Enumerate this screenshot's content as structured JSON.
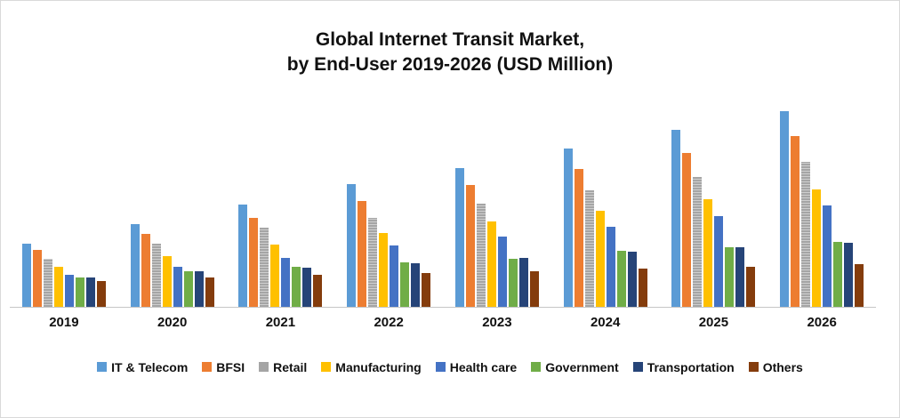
{
  "title": {
    "line1": "Global Internet Transit Market,",
    "line2": "by End-User 2019-2026 (USD Million)"
  },
  "chart_data": {
    "type": "bar",
    "title": "Global Internet Transit Market, by End-User 2019-2026 (USD Million)",
    "xlabel": "",
    "ylabel": "",
    "ylim": [
      0,
      250
    ],
    "grid": false,
    "legend_position": "bottom",
    "categories": [
      "2019",
      "2020",
      "2021",
      "2022",
      "2023",
      "2024",
      "2025",
      "2026"
    ],
    "series": [
      {
        "name": "IT & Telecom",
        "color": "#5B9BD5",
        "pattern": "solid",
        "values": [
          75,
          98,
          121,
          145,
          164,
          187,
          210,
          232
        ]
      },
      {
        "name": "BFSI",
        "color": "#ED7D31",
        "pattern": "solid",
        "values": [
          67,
          86,
          105,
          125,
          144,
          163,
          182,
          202
        ]
      },
      {
        "name": "Retail",
        "color": "#A5A5A5",
        "pattern": "stripes",
        "values": [
          57,
          75,
          94,
          105,
          122,
          138,
          154,
          172
        ]
      },
      {
        "name": "Manufacturing",
        "color": "#FFC000",
        "pattern": "solid",
        "values": [
          47,
          60,
          73,
          87,
          101,
          114,
          127,
          139
        ]
      },
      {
        "name": "Health care",
        "color": "#4472C4",
        "pattern": "solid",
        "values": [
          38,
          47,
          58,
          72,
          83,
          95,
          107,
          120
        ]
      },
      {
        "name": "Government",
        "color": "#70AD47",
        "pattern": "solid",
        "values": [
          35,
          42,
          47,
          52,
          57,
          66,
          70,
          77
        ]
      },
      {
        "name": "Transportation",
        "color": "#264478",
        "pattern": "solid",
        "values": [
          35,
          42,
          46,
          51,
          58,
          65,
          70,
          76
        ]
      },
      {
        "name": "Others",
        "color": "#843C0C",
        "pattern": "solid",
        "values": [
          30,
          35,
          38,
          40,
          42,
          45,
          47,
          50
        ]
      }
    ]
  }
}
